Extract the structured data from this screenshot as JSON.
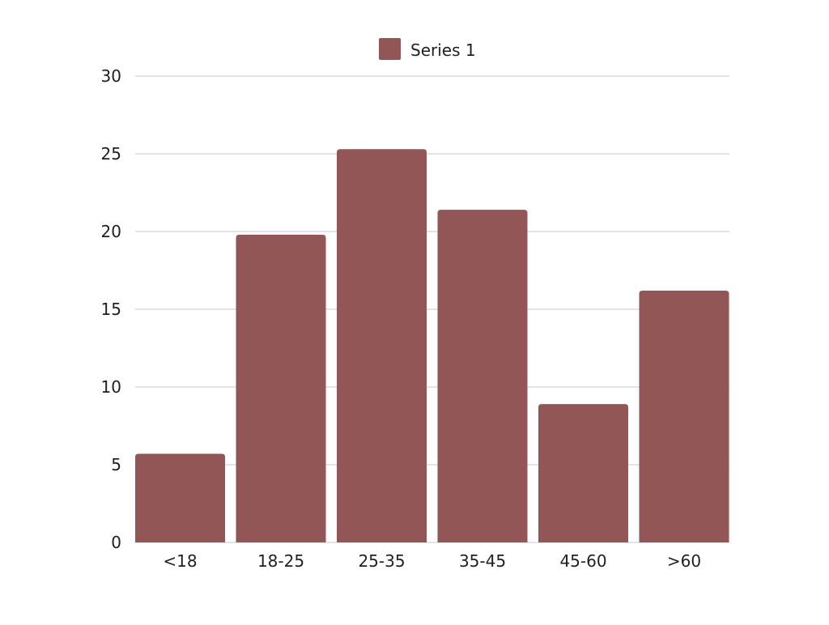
{
  "chart_data": {
    "type": "bar",
    "categories": [
      "<18",
      "18-25",
      "25-35",
      "35-45",
      "45-60",
      ">60"
    ],
    "series": [
      {
        "name": "Series 1",
        "values": [
          5.7,
          19.8,
          25.3,
          21.4,
          8.9,
          16.2
        ],
        "color": "#925656"
      }
    ],
    "ylim": [
      0,
      30
    ],
    "yticks": [
      0,
      5,
      10,
      15,
      20,
      25,
      30
    ],
    "grid": true,
    "legend_position": "top-center",
    "title": "",
    "xlabel": "",
    "ylabel": ""
  }
}
